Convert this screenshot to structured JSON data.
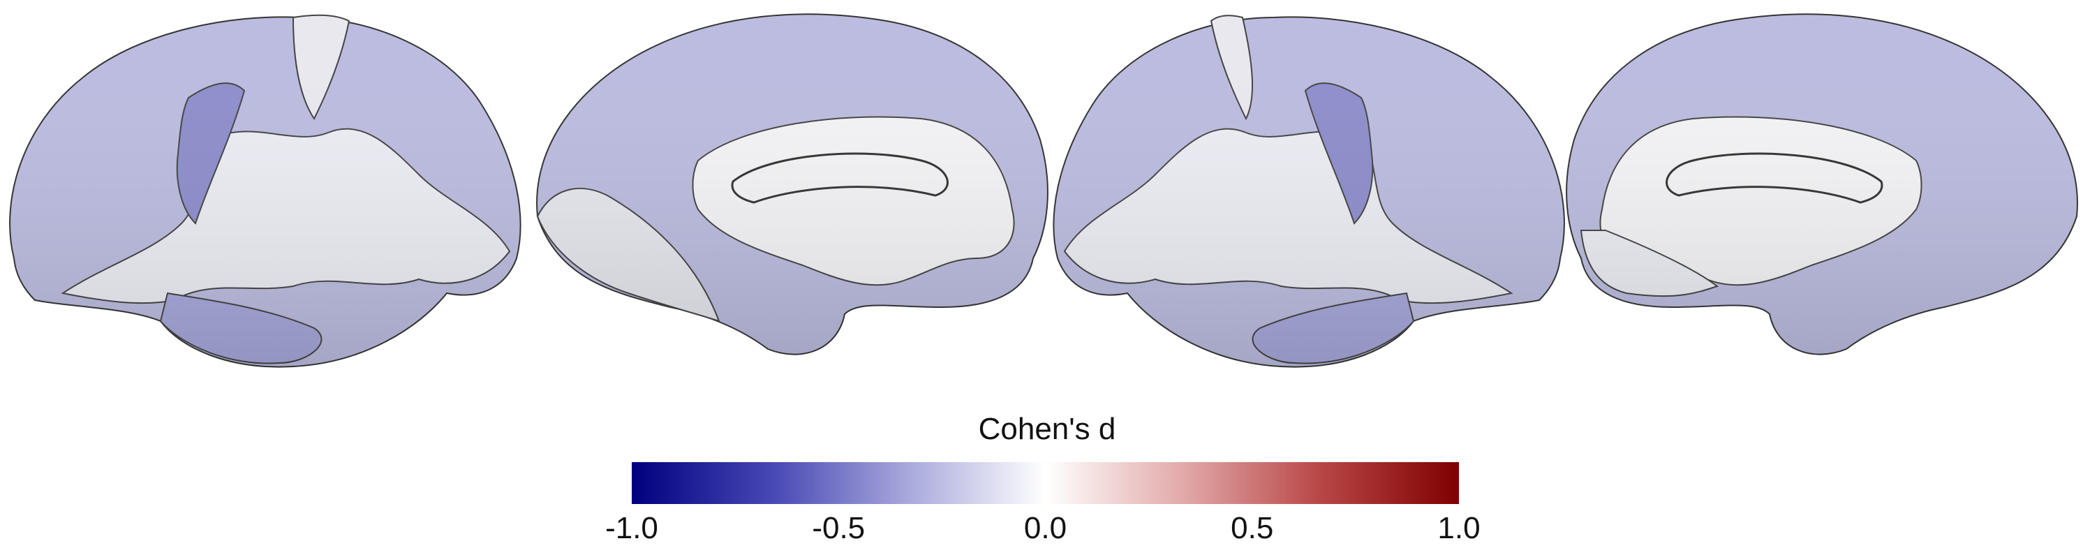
{
  "colorbar": {
    "title": "Cohen's d",
    "min": -1.0,
    "max": 1.0,
    "colormap_stops": [
      "#00007f",
      "#4646b4",
      "#a8a8dc",
      "#ffffff",
      "#e2a9a9",
      "#b84646",
      "#7f0000"
    ],
    "ticks": [
      {
        "value": -1.0,
        "label": "-1.0"
      },
      {
        "value": -0.5,
        "label": "-0.5"
      },
      {
        "value": 0.0,
        "label": "0.0"
      },
      {
        "value": 0.5,
        "label": "0.5"
      },
      {
        "value": 1.0,
        "label": "1.0"
      }
    ]
  },
  "views": [
    {
      "name": "left-hemisphere-lateral"
    },
    {
      "name": "left-hemisphere-medial"
    },
    {
      "name": "right-hemisphere-lateral"
    },
    {
      "name": "right-hemisphere-medial"
    }
  ]
}
